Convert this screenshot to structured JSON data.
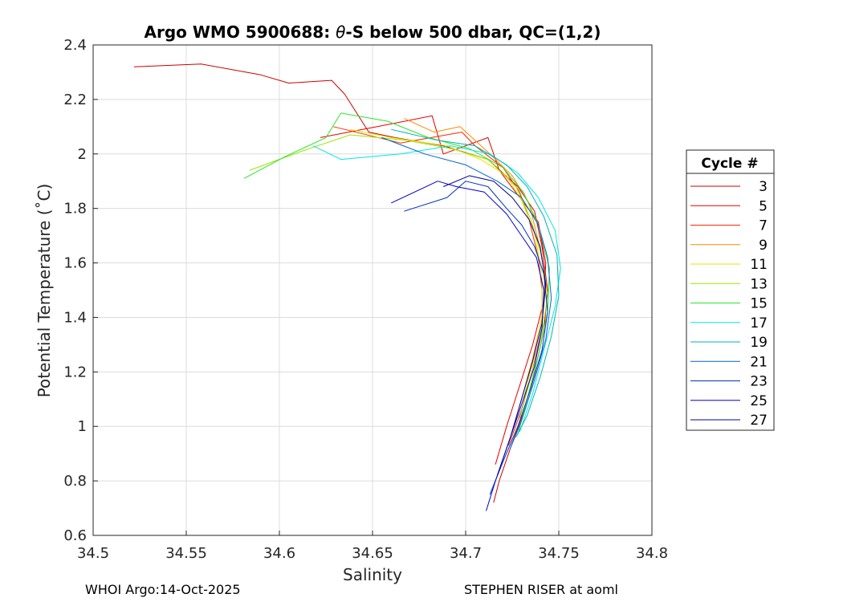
{
  "chart_data": {
    "type": "line",
    "title_prefix": "Argo WMO 5900688: ",
    "title_theta": "θ",
    "title_suffix": "-S below 500 dbar,  QC=(1,2)",
    "xlabel": "Salinity",
    "ylabel": "Potential Temperature (˚C)",
    "xlim": [
      34.5,
      34.8
    ],
    "ylim": [
      0.6,
      2.4
    ],
    "xticks": [
      34.5,
      34.55,
      34.6,
      34.65,
      34.7,
      34.75,
      34.8
    ],
    "xtick_labels": [
      "34.5",
      "34.55",
      "34.6",
      "34.65",
      "34.7",
      "34.75",
      "34.8"
    ],
    "yticks": [
      0.6,
      0.8,
      1.0,
      1.2,
      1.4,
      1.6,
      1.8,
      2.0,
      2.2,
      2.4
    ],
    "ytick_labels": [
      "0.6",
      "0.8",
      "1",
      "1.2",
      "1.4",
      "1.6",
      "1.8",
      "2",
      "2.2",
      "2.4"
    ],
    "grid": true,
    "legend_title": "Cycle #",
    "legend_position": "right",
    "series": [
      {
        "name": "3",
        "color": "#cc0000",
        "x": [
          34.522,
          34.558,
          34.59,
          34.605,
          34.628,
          34.635,
          34.648,
          34.662,
          34.688,
          34.712,
          34.728,
          34.737,
          34.741,
          34.744,
          34.742,
          34.737,
          34.731,
          34.724,
          34.718,
          34.715
        ],
        "y": [
          2.32,
          2.33,
          2.29,
          2.26,
          2.27,
          2.22,
          2.08,
          2.06,
          2.03,
          1.98,
          1.88,
          1.79,
          1.66,
          1.5,
          1.35,
          1.2,
          1.05,
          0.92,
          0.8,
          0.72
        ]
      },
      {
        "name": "5",
        "color": "#e60000",
        "x": [
          34.622,
          34.66,
          34.682,
          34.688,
          34.712,
          34.718,
          34.729,
          34.739,
          34.743,
          34.742,
          34.736,
          34.729,
          34.722,
          34.716
        ],
        "y": [
          2.06,
          2.11,
          2.14,
          2.0,
          2.06,
          1.94,
          1.84,
          1.75,
          1.6,
          1.46,
          1.3,
          1.15,
          1.0,
          0.86
        ]
      },
      {
        "name": "7",
        "color": "#ff2a00",
        "x": [
          34.629,
          34.665,
          34.698,
          34.705,
          34.72,
          34.729,
          34.734,
          34.739,
          34.741,
          34.741,
          34.736,
          34.73,
          34.723
        ],
        "y": [
          2.1,
          2.04,
          2.08,
          2.03,
          1.95,
          1.86,
          1.76,
          1.62,
          1.5,
          1.36,
          1.21,
          1.06,
          0.93
        ]
      },
      {
        "name": "9",
        "color": "#ff8a00",
        "x": [
          34.667,
          34.683,
          34.697,
          34.713,
          34.725,
          34.734,
          34.739,
          34.743,
          34.741,
          34.736,
          34.73,
          34.725
        ],
        "y": [
          2.13,
          2.08,
          2.1,
          2.0,
          1.92,
          1.82,
          1.68,
          1.54,
          1.4,
          1.25,
          1.1,
          0.98
        ]
      },
      {
        "name": "11",
        "color": "#e6e600",
        "x": [
          34.638,
          34.66,
          34.69,
          34.708,
          34.722,
          34.73,
          34.737,
          34.741,
          34.741,
          34.737,
          34.731
        ],
        "y": [
          2.09,
          2.06,
          2.03,
          1.98,
          1.92,
          1.83,
          1.71,
          1.56,
          1.41,
          1.26,
          1.1
        ]
      },
      {
        "name": "13",
        "color": "#9be600",
        "x": [
          34.584,
          34.612,
          34.638,
          34.668,
          34.692,
          34.712,
          34.727,
          34.735,
          34.741,
          34.744,
          34.741,
          34.735,
          34.729
        ],
        "y": [
          1.94,
          2.01,
          2.07,
          2.05,
          2.02,
          1.98,
          1.88,
          1.76,
          1.62,
          1.48,
          1.34,
          1.18,
          1.03
        ]
      },
      {
        "name": "15",
        "color": "#29e629",
        "x": [
          34.581,
          34.603,
          34.625,
          34.633,
          34.658,
          34.68,
          34.702,
          34.72,
          34.731,
          34.739,
          34.745,
          34.744,
          34.739,
          34.733,
          34.728
        ],
        "y": [
          1.91,
          1.99,
          2.06,
          2.15,
          2.12,
          2.06,
          2.02,
          1.95,
          1.86,
          1.74,
          1.58,
          1.42,
          1.26,
          1.1,
          0.97
        ]
      },
      {
        "name": "17",
        "color": "#00e6e6",
        "x": [
          34.618,
          34.633,
          34.665,
          34.692,
          34.713,
          34.728,
          34.739,
          34.748,
          34.751,
          34.748,
          34.742,
          34.736,
          34.729
        ],
        "y": [
          2.03,
          1.98,
          2.0,
          2.03,
          2.0,
          1.93,
          1.84,
          1.72,
          1.58,
          1.44,
          1.28,
          1.12,
          0.98
        ]
      },
      {
        "name": "19",
        "color": "#00b3b3",
        "x": [
          34.66,
          34.685,
          34.705,
          34.722,
          34.733,
          34.742,
          34.749,
          34.75,
          34.746,
          34.74,
          34.733,
          34.727
        ],
        "y": [
          2.09,
          2.05,
          2.03,
          1.96,
          1.88,
          1.77,
          1.63,
          1.48,
          1.33,
          1.18,
          1.04,
          0.96
        ]
      },
      {
        "name": "21",
        "color": "#0066cc",
        "x": [
          34.655,
          34.678,
          34.7,
          34.717,
          34.73,
          34.739,
          34.744,
          34.746,
          34.743,
          34.737,
          34.73,
          34.724
        ],
        "y": [
          2.06,
          2.0,
          1.96,
          1.9,
          1.84,
          1.74,
          1.62,
          1.47,
          1.32,
          1.17,
          1.02,
          0.92
        ]
      },
      {
        "name": "23",
        "color": "#0033bb",
        "x": [
          34.667,
          34.69,
          34.7,
          34.712,
          34.722,
          34.73,
          34.737,
          34.742,
          34.744,
          34.741,
          34.735,
          34.728,
          34.72,
          34.713
        ],
        "y": [
          1.79,
          1.84,
          1.9,
          1.88,
          1.8,
          1.74,
          1.66,
          1.56,
          1.42,
          1.28,
          1.14,
          1.0,
          0.87,
          0.75
        ]
      },
      {
        "name": "25",
        "color": "#0000cc",
        "x": [
          34.66,
          34.685,
          34.695,
          34.71,
          34.722,
          34.73,
          34.738,
          34.742,
          34.741,
          34.737,
          34.73,
          34.723,
          34.716,
          34.711
        ],
        "y": [
          1.82,
          1.9,
          1.88,
          1.86,
          1.78,
          1.7,
          1.62,
          1.5,
          1.36,
          1.22,
          1.08,
          0.94,
          0.8,
          0.69
        ]
      },
      {
        "name": "27",
        "color": "#000099",
        "x": [
          34.688,
          34.702,
          34.715,
          34.725,
          34.734,
          34.74,
          34.743,
          34.741,
          34.736,
          34.73,
          34.724,
          34.717
        ],
        "y": [
          1.88,
          1.92,
          1.9,
          1.84,
          1.76,
          1.66,
          1.52,
          1.38,
          1.24,
          1.1,
          0.96,
          0.82
        ]
      }
    ]
  },
  "footer": {
    "left": "WHOI Argo:14-Oct-2025",
    "right": "STEPHEN RISER at aoml"
  }
}
